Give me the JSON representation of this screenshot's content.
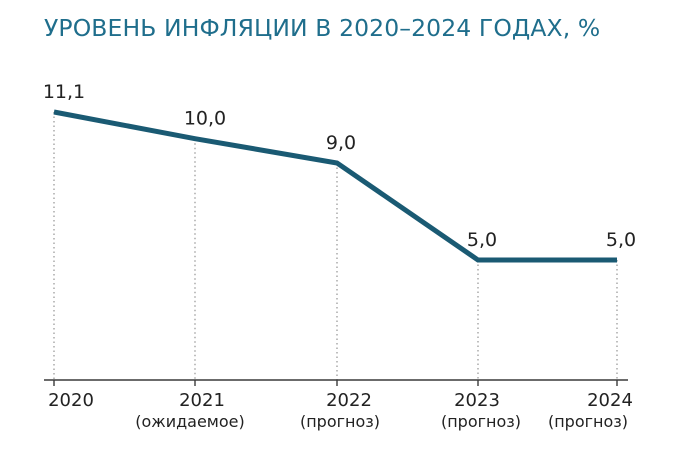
{
  "chart_data": {
    "type": "line",
    "title": "УРОВЕНЬ ИНФЛЯЦИИ В 2020–2024 ГОДАХ, %",
    "categories": [
      "2020",
      "2021",
      "2022",
      "2023",
      "2024"
    ],
    "category_notes": [
      "",
      "(ожидаемое)",
      "(прогноз)",
      "(прогноз)",
      "(прогноз)"
    ],
    "values": [
      11.1,
      10.0,
      9.0,
      5.0,
      5.0
    ],
    "value_labels": [
      "11,1",
      "10,0",
      "9,0",
      "5,0",
      "5,0"
    ],
    "xlabel": "",
    "ylabel": "",
    "ylim": [
      0,
      11.1
    ],
    "grid": "vertical dotted drop lines",
    "colors": {
      "line": "#1a5a73",
      "title": "#1f6e8c",
      "text": "#222222",
      "axis": "#3a3a3a",
      "guides": "#8a8a8a"
    }
  }
}
